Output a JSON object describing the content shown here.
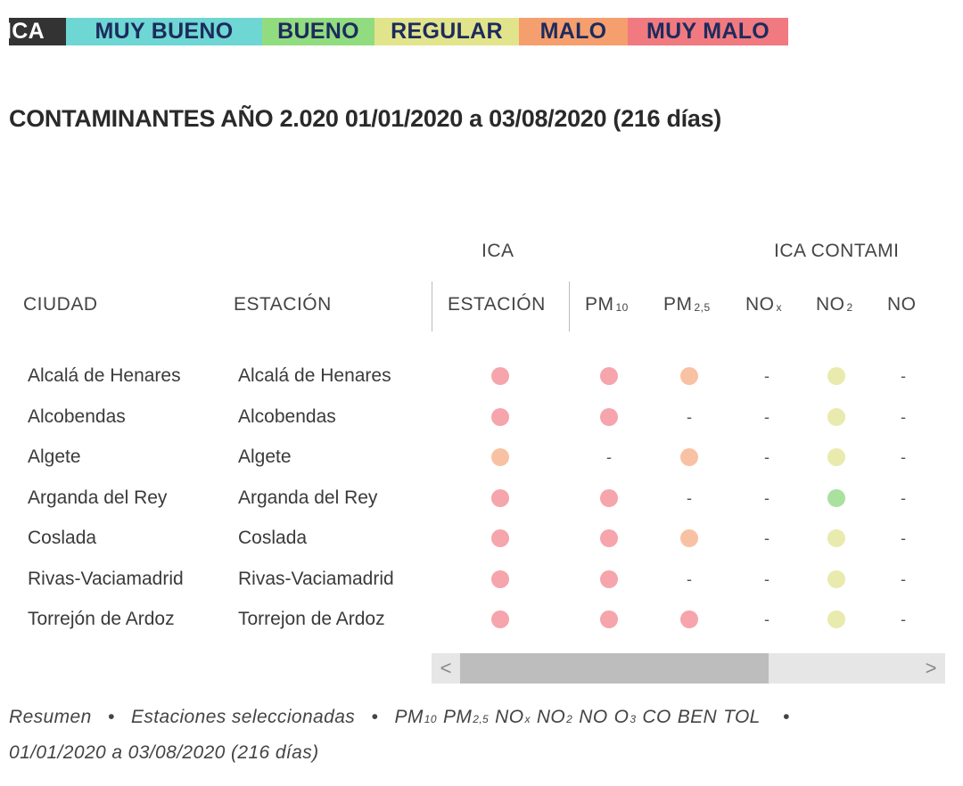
{
  "legend": {
    "ica": "ICA",
    "muy_bueno": "MUY BUENO",
    "bueno": "BUENO",
    "regular": "REGULAR",
    "malo": "MALO",
    "muy_malo": "MUY MALO"
  },
  "colors": {
    "muy_bueno": "#6ed7d3",
    "bueno": "#92dc80",
    "regular": "#e2e48c",
    "malo": "#f59f6e",
    "muy_malo": "#f07a80",
    "dot_muy_malo": "#f5a5ab",
    "dot_malo": "#f9c1a4",
    "dot_regular": "#e9eaae",
    "dot_bueno": "#a9e19f"
  },
  "title": "CONTAMINANTES  AÑO 2.020 01/01/2020 a 03/08/2020 (216 días)",
  "table": {
    "group_headers": {
      "ica": "ICA",
      "ica_contaminantes": "ICA CONTAMI"
    },
    "headers": {
      "ciudad": "CIUDAD",
      "estacion": "ESTACIÓN",
      "ica_estacion": "ESTACIÓN",
      "pm10": "PM",
      "pm10_sub": "10",
      "pm25": "PM",
      "pm25_sub": "2,5",
      "nox": "NO",
      "nox_sub": "x",
      "no2": "NO",
      "no2_sub": "2",
      "no": "NO"
    },
    "rows": [
      {
        "ciudad": "Alcalá de Henares",
        "estacion": "Alcalá de Henares",
        "ica": "muy_malo",
        "pm10": "muy_malo",
        "pm25": "malo",
        "nox": "-",
        "no2": "regular",
        "no": "-"
      },
      {
        "ciudad": "Alcobendas",
        "estacion": "Alcobendas",
        "ica": "muy_malo",
        "pm10": "muy_malo",
        "pm25": "-",
        "nox": "-",
        "no2": "regular",
        "no": "-"
      },
      {
        "ciudad": "Algete",
        "estacion": "Algete",
        "ica": "malo",
        "pm10": "-",
        "pm25": "malo",
        "nox": "-",
        "no2": "regular",
        "no": "-"
      },
      {
        "ciudad": "Arganda del Rey",
        "estacion": "Arganda del Rey",
        "ica": "muy_malo",
        "pm10": "muy_malo",
        "pm25": "-",
        "nox": "-",
        "no2": "bueno",
        "no": "-"
      },
      {
        "ciudad": "Coslada",
        "estacion": "Coslada",
        "ica": "muy_malo",
        "pm10": "muy_malo",
        "pm25": "malo",
        "nox": "-",
        "no2": "regular",
        "no": "-"
      },
      {
        "ciudad": "Rivas-Vaciamadrid",
        "estacion": "Rivas-Vaciamadrid",
        "ica": "muy_malo",
        "pm10": "muy_malo",
        "pm25": "-",
        "nox": "-",
        "no2": "regular",
        "no": "-"
      },
      {
        "ciudad": "Torrejón de Ardoz",
        "estacion": "Torrejon de Ardoz",
        "ica": "muy_malo",
        "pm10": "muy_malo",
        "pm25": "muy_malo",
        "nox": "-",
        "no2": "regular",
        "no": "-"
      }
    ]
  },
  "scrollbar": {
    "left_arrow": "<",
    "right_arrow": ">"
  },
  "footer": {
    "resumen": "Resumen",
    "dot": "•",
    "estaciones": "Estaciones seleccionadas",
    "pollutants": [
      {
        "base": "PM",
        "sub": "10"
      },
      {
        "base": "PM",
        "sub": "2,5"
      },
      {
        "base": "NO",
        "sub": "x"
      },
      {
        "base": "NO",
        "sub": "2"
      },
      {
        "base": "NO",
        "sub": ""
      },
      {
        "base": "O",
        "sub": "3"
      },
      {
        "base": "CO",
        "sub": ""
      },
      {
        "base": "BEN",
        "sub": ""
      },
      {
        "base": "TOL",
        "sub": ""
      }
    ],
    "range": "01/01/2020 a 03/08/2020 (216 días)"
  }
}
